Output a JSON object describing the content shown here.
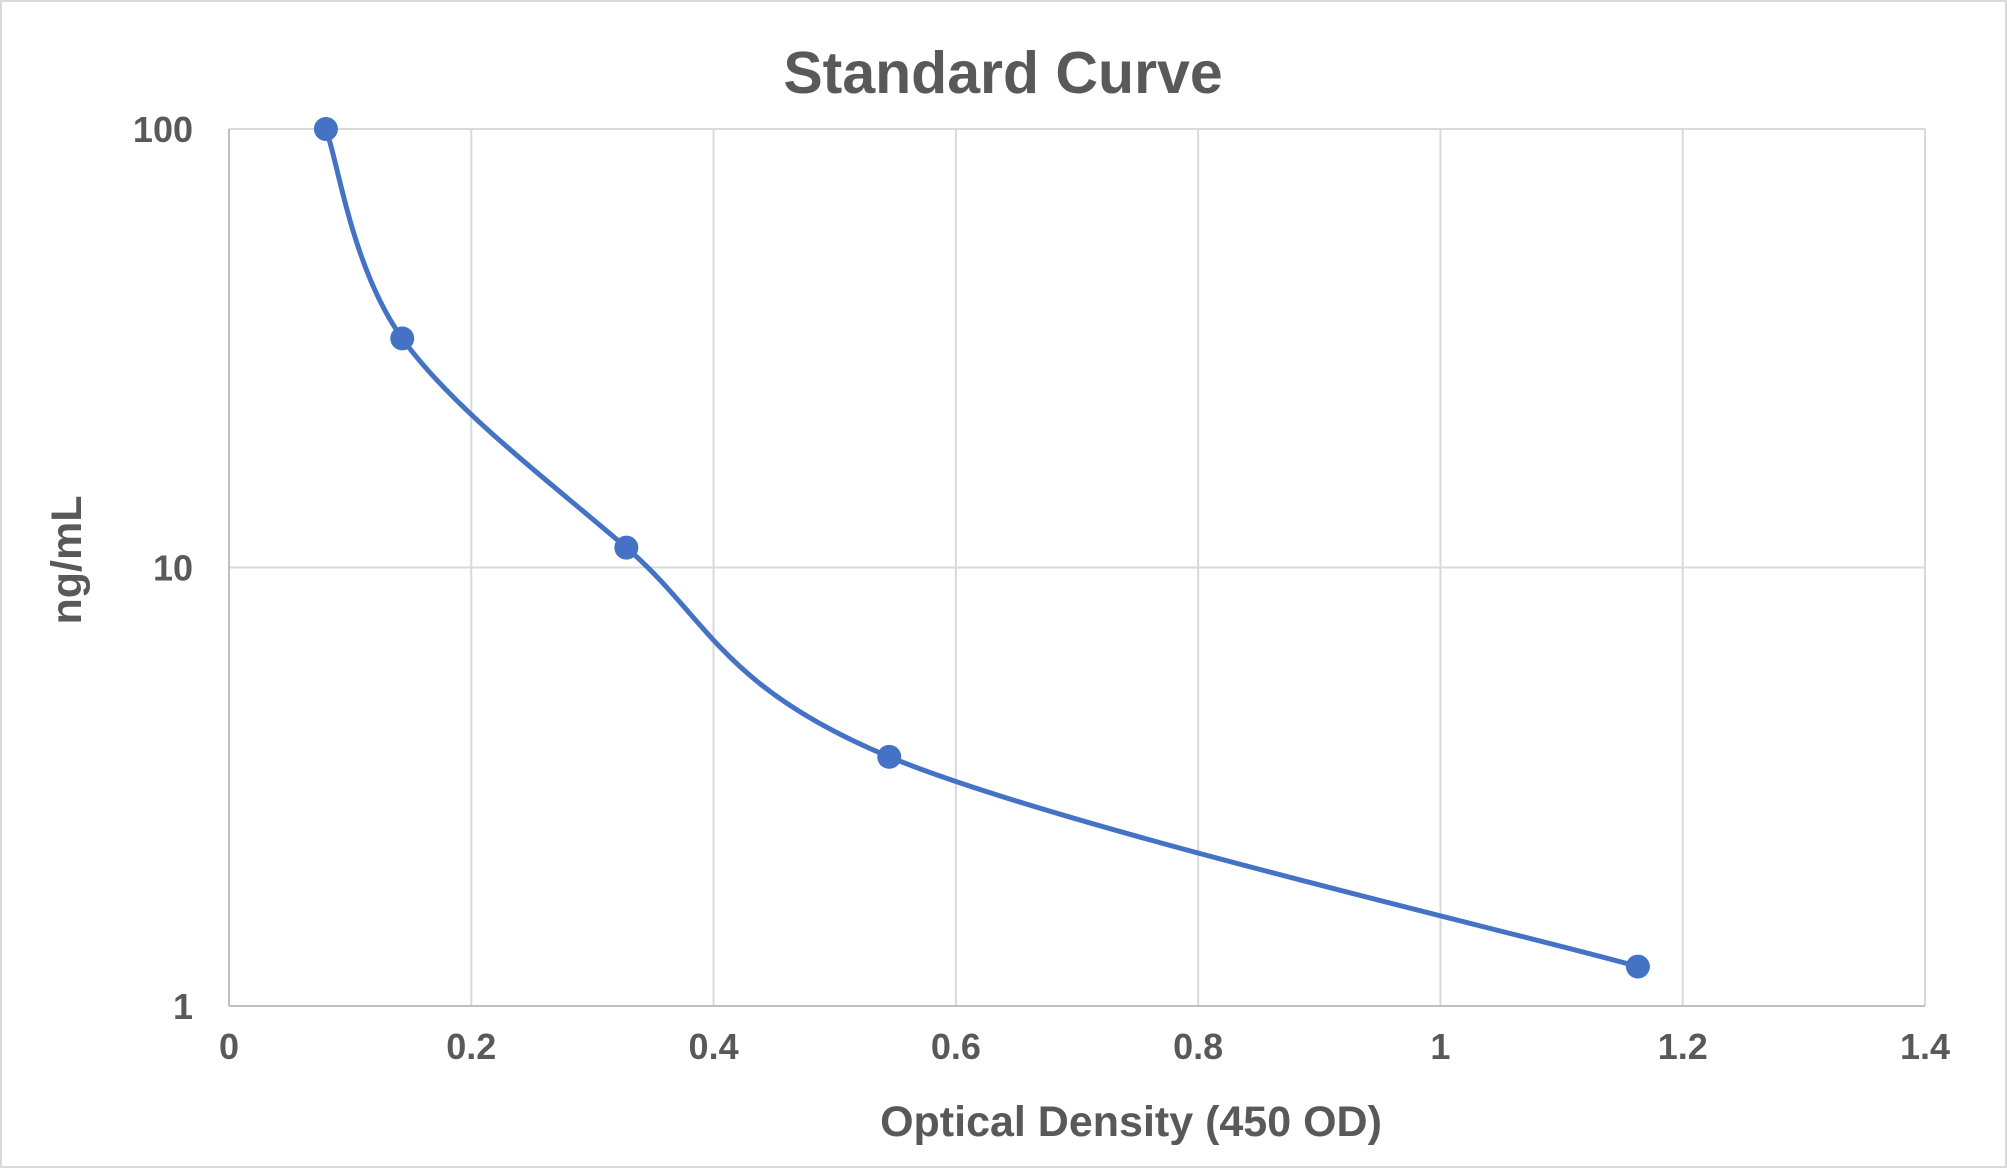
{
  "chart_data": {
    "type": "scatter",
    "title": "Standard Curve",
    "xlabel": "Optical Density (450 OD)",
    "ylabel": "ng/mL",
    "xlim": [
      0,
      1.4
    ],
    "ylim": [
      1,
      100
    ],
    "y_scale": "log",
    "x_ticks": [
      "0",
      "0.2",
      "0.4",
      "0.6",
      "0.8",
      "1",
      "1.2",
      "1.4"
    ],
    "y_ticks": [
      "1",
      "10",
      "100"
    ],
    "grid": true,
    "smoothed_line": true,
    "color": "#4472C4",
    "series": [
      {
        "x": [
          0.08,
          0.143,
          0.328,
          0.545,
          1.163
        ],
        "y": [
          100,
          33.3,
          11.1,
          3.7,
          1.23
        ]
      }
    ]
  }
}
